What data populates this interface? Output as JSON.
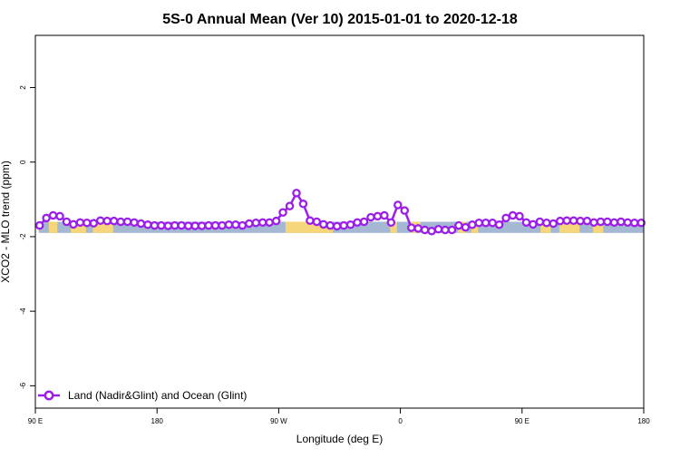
{
  "chart_data": {
    "type": "line",
    "title": "5S-0 Annual Mean (Ver 10)   2015-01-01 to 2020-12-18",
    "xlabel": "Longitude (deg E)",
    "ylabel": "XCO2 - MLO trend (ppm)",
    "xlim": [
      90,
      450
    ],
    "ylim": [
      -6.6,
      3.4
    ],
    "x_ticks": [
      {
        "value": 90,
        "label": "90 E"
      },
      {
        "value": 162,
        "label": "180"
      },
      {
        "value": 234,
        "label": "90 W"
      },
      {
        "value": 306,
        "label": "0"
      },
      {
        "value": 378,
        "label": "90 E"
      },
      {
        "value": 450,
        "label": "180"
      }
    ],
    "y_ticks": [
      {
        "value": 2,
        "label": "2"
      },
      {
        "value": 0,
        "label": "0"
      },
      {
        "value": -2,
        "label": "-2"
      },
      {
        "value": -4,
        "label": "-4"
      },
      {
        "value": -6,
        "label": "-6"
      }
    ],
    "grid": false,
    "legend_position": "bottom-left",
    "band": {
      "ymin": -1.9,
      "ymax": -1.6,
      "color": "#a4b8d4",
      "land_color": "#f7d57a"
    },
    "land_segments": [
      [
        98,
        103
      ],
      [
        111,
        120
      ],
      [
        124,
        136
      ],
      [
        238,
        266
      ],
      [
        300,
        304
      ],
      [
        312,
        318
      ],
      [
        340,
        345
      ],
      [
        348,
        352
      ],
      [
        389,
        395
      ],
      [
        400,
        412
      ],
      [
        420,
        426
      ]
    ],
    "series": [
      {
        "name": "Land (Nadir&Glint) and Ocean (Glint)",
        "color": "#9b1fe8",
        "x": [
          92.5,
          96.5,
          100.5,
          104.5,
          108.5,
          112.5,
          116.5,
          120.5,
          124.5,
          128.5,
          132.5,
          136.5,
          140.5,
          144.5,
          148.5,
          152.5,
          156.5,
          160.5,
          164.5,
          168.5,
          172.5,
          176.5,
          180.5,
          184.5,
          188.5,
          192.5,
          196.5,
          200.5,
          204.5,
          208.5,
          212.5,
          216.5,
          220.5,
          224.5,
          228.5,
          232.5,
          236.5,
          240.5,
          244.5,
          248.5,
          252.5,
          256.5,
          260.5,
          264.5,
          268.5,
          272.5,
          276.5,
          280.5,
          284.5,
          288.5,
          292.5,
          296.5,
          300.5,
          304.5,
          308.5,
          312.5,
          316.5,
          320.5,
          324.5,
          328.5,
          332.5,
          336.5,
          340.5,
          344.5,
          348.5,
          352.5,
          356.5,
          360.5,
          364.5,
          368.5,
          372.5,
          376.5,
          380.5,
          384.5,
          388.5,
          392.5,
          396.5,
          400.5,
          404.5,
          408.5,
          412.5,
          416.5,
          420.5,
          424.5,
          428.5,
          432.5,
          436.5,
          440.5,
          444.5,
          448.5
        ],
        "values": [
          -1.7,
          -1.5,
          -1.43,
          -1.45,
          -1.6,
          -1.67,
          -1.62,
          -1.63,
          -1.64,
          -1.57,
          -1.58,
          -1.58,
          -1.6,
          -1.6,
          -1.62,
          -1.65,
          -1.68,
          -1.7,
          -1.7,
          -1.71,
          -1.7,
          -1.7,
          -1.71,
          -1.71,
          -1.71,
          -1.7,
          -1.7,
          -1.7,
          -1.68,
          -1.68,
          -1.7,
          -1.65,
          -1.63,
          -1.62,
          -1.62,
          -1.58,
          -1.35,
          -1.18,
          -0.83,
          -1.12,
          -1.57,
          -1.6,
          -1.67,
          -1.7,
          -1.72,
          -1.7,
          -1.68,
          -1.62,
          -1.6,
          -1.48,
          -1.45,
          -1.43,
          -1.62,
          -1.15,
          -1.3,
          -1.76,
          -1.78,
          -1.82,
          -1.85,
          -1.8,
          -1.82,
          -1.82,
          -1.7,
          -1.75,
          -1.68,
          -1.63,
          -1.63,
          -1.63,
          -1.68,
          -1.5,
          -1.43,
          -1.45,
          -1.62,
          -1.67,
          -1.6,
          -1.63,
          -1.65,
          -1.58,
          -1.57,
          -1.57,
          -1.58,
          -1.58,
          -1.62,
          -1.6,
          -1.6,
          -1.62,
          -1.6,
          -1.62,
          -1.63,
          -1.63
        ]
      }
    ]
  }
}
